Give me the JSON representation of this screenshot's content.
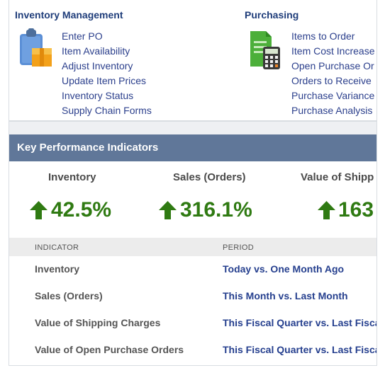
{
  "inventory_management": {
    "title": "Inventory Management",
    "icon": "clipboard-box-icon",
    "links": [
      "Enter PO",
      "Item Availability",
      "Adjust Inventory",
      "Update Item Prices",
      "Inventory Status",
      "Supply Chain Forms"
    ]
  },
  "purchasing": {
    "title": "Purchasing",
    "icon": "document-calculator-icon",
    "links": [
      "Items to Order",
      "Item Cost Increase",
      "Open Purchase Or",
      "Orders to Receive",
      "Purchase Variance",
      "Purchase Analysis"
    ]
  },
  "kpi": {
    "header_title": "Key Performance Indicators",
    "cards": [
      {
        "label": "Inventory",
        "value": "42.5%",
        "trend": "up"
      },
      {
        "label": "Sales (Orders)",
        "value": "316.1%",
        "trend": "up"
      },
      {
        "label": "Value of Shipp",
        "value": "163",
        "trend": "up"
      }
    ],
    "table": {
      "headers": {
        "indicator": "INDICATOR",
        "period": "PERIOD"
      },
      "rows": [
        {
          "indicator": "Inventory",
          "period": "Today vs. One Month Ago"
        },
        {
          "indicator": "Sales (Orders)",
          "period": "This Month vs. Last Month"
        },
        {
          "indicator": "Value of Shipping Charges",
          "period": "This Fiscal Quarter vs. Last Fiscal"
        },
        {
          "indicator": "Value of Open Purchase Orders",
          "period": "This Fiscal Quarter vs. Last Fiscal"
        }
      ]
    }
  },
  "colors": {
    "link": "#2b3f8c",
    "header_bg": "#607799",
    "trend_up": "#2f7a12"
  }
}
